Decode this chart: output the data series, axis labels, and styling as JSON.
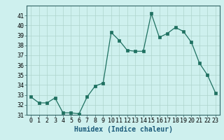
{
  "x": [
    0,
    1,
    2,
    3,
    4,
    5,
    6,
    7,
    8,
    9,
    10,
    11,
    12,
    13,
    14,
    15,
    16,
    17,
    18,
    19,
    20,
    21,
    22,
    23
  ],
  "y": [
    32.8,
    32.2,
    32.2,
    32.7,
    31.2,
    31.2,
    31.1,
    32.8,
    33.9,
    34.2,
    39.3,
    38.5,
    37.5,
    37.4,
    37.4,
    41.2,
    38.8,
    39.2,
    39.8,
    39.4,
    38.3,
    36.2,
    35.0,
    33.2
  ],
  "xlabel": "Humidex (Indice chaleur)",
  "ylim_min": 31,
  "ylim_max": 42,
  "yticks": [
    31,
    32,
    33,
    34,
    35,
    36,
    37,
    38,
    39,
    40,
    41
  ],
  "xticks": [
    0,
    1,
    2,
    3,
    4,
    5,
    6,
    7,
    8,
    9,
    10,
    11,
    12,
    13,
    14,
    15,
    16,
    17,
    18,
    19,
    20,
    21,
    22,
    23
  ],
  "line_color": "#1e7060",
  "marker_color": "#1e7060",
  "bg_color": "#cef0ee",
  "grid_color": "#aed4cc",
  "xlabel_color": "#1a5a7a",
  "tick_fontsize": 6,
  "xlabel_fontsize": 7,
  "linewidth": 0.9,
  "markersize": 2.2
}
